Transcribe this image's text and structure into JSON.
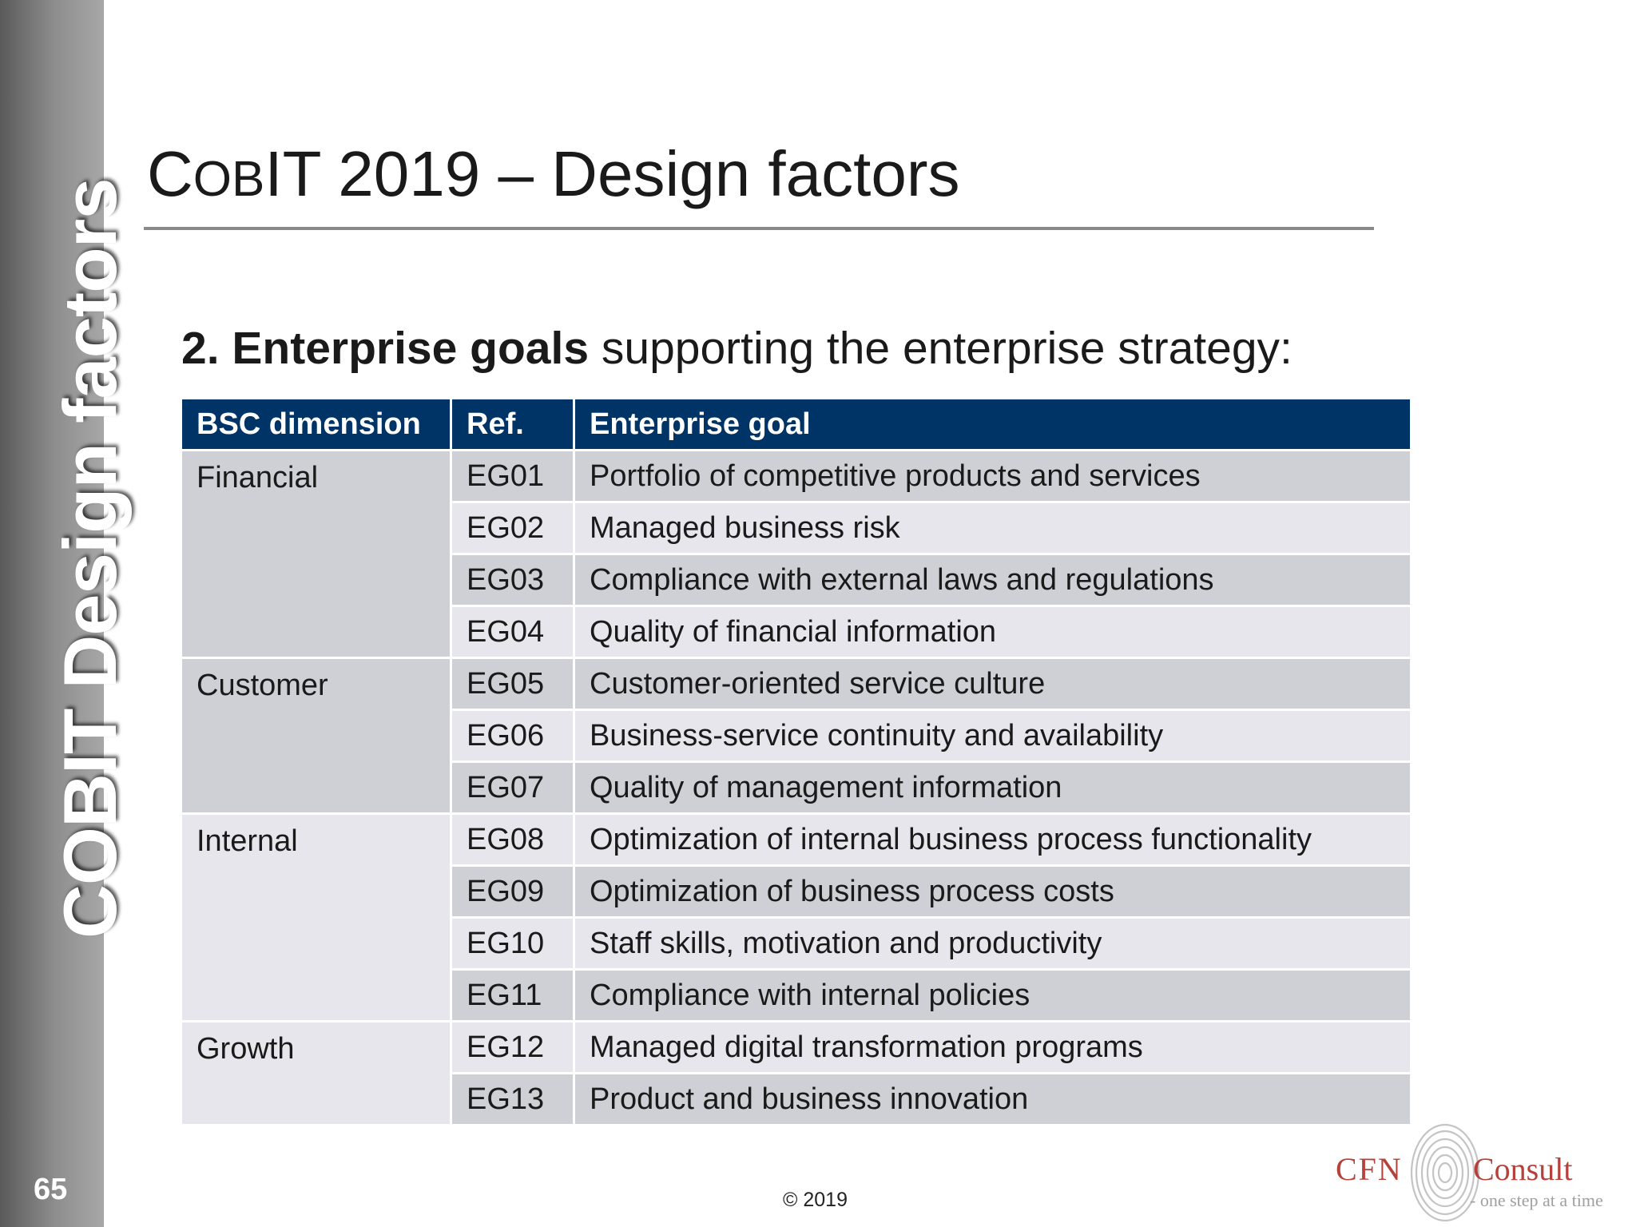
{
  "sidebar": {
    "title": "COBIT Design factors",
    "page_number": "65"
  },
  "slide": {
    "title_c": "C",
    "title_ob": "OB",
    "title_i": "I",
    "title_rest": "T 2019 – Design factors",
    "subtitle_bold": "2. Enterprise goals",
    "subtitle_rest": " supporting the enterprise strategy:"
  },
  "table": {
    "headers": [
      "BSC dimension",
      "Ref.",
      "Enterprise goal"
    ],
    "groups": [
      {
        "dimension": "Financial",
        "rows": [
          {
            "ref": "EG01",
            "goal": "Portfolio of competitive products and services"
          },
          {
            "ref": "EG02",
            "goal": "Managed business risk"
          },
          {
            "ref": "EG03",
            "goal": "Compliance with external laws and regulations"
          },
          {
            "ref": "EG04",
            "goal": "Quality of financial information"
          }
        ]
      },
      {
        "dimension": "Customer",
        "rows": [
          {
            "ref": "EG05",
            "goal": "Customer-oriented service culture"
          },
          {
            "ref": "EG06",
            "goal": "Business-service continuity and availability"
          },
          {
            "ref": "EG07",
            "goal": "Quality of management information"
          }
        ]
      },
      {
        "dimension": "Internal",
        "rows": [
          {
            "ref": "EG08",
            "goal": "Optimization of internal business process functionality"
          },
          {
            "ref": "EG09",
            "goal": "Optimization of business process costs"
          },
          {
            "ref": "EG10",
            "goal": "Staff skills, motivation and productivity"
          },
          {
            "ref": "EG11",
            "goal": "Compliance with internal policies"
          }
        ]
      },
      {
        "dimension": "Growth",
        "rows": [
          {
            "ref": "EG12",
            "goal": "Managed digital transformation programs"
          },
          {
            "ref": "EG13",
            "goal": "Product and business innovation"
          }
        ]
      }
    ]
  },
  "footer": {
    "copyright": "© 2019"
  },
  "logo": {
    "brand_left": "CFN",
    "brand_right": "Consult",
    "tagline": "- one step at a time"
  },
  "colors": {
    "header_bg": "#003366",
    "row_dark": "#cfcfd6",
    "row_light": "#e6e6ec",
    "logo_red": "#b5413a"
  }
}
